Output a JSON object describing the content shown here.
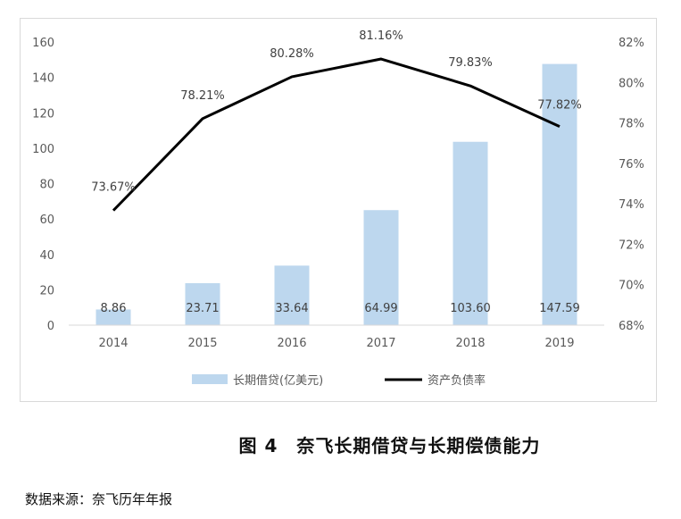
{
  "chart_data": {
    "type": "bar+line",
    "categories": [
      "2014",
      "2015",
      "2016",
      "2017",
      "2018",
      "2019"
    ],
    "series": [
      {
        "name": "长期借贷(亿美元)",
        "type": "bar",
        "axis": "left",
        "values": [
          8.86,
          23.71,
          33.64,
          64.99,
          103.6,
          147.59
        ],
        "labels": [
          "8.86",
          "23.71",
          "33.64",
          "64.99",
          "103.60",
          "147.59"
        ],
        "color": "#bdd7ee"
      },
      {
        "name": "资产负债率",
        "type": "line",
        "axis": "right",
        "values": [
          73.67,
          78.21,
          80.28,
          81.16,
          79.83,
          77.82
        ],
        "labels": [
          "73.67%",
          "78.21%",
          "80.28%",
          "81.16%",
          "79.83%",
          "77.82%"
        ],
        "color": "#000000"
      }
    ],
    "y_left": {
      "min": 0,
      "max": 160,
      "ticks": [
        "0",
        "20",
        "40",
        "60",
        "80",
        "100",
        "120",
        "140",
        "160"
      ]
    },
    "y_right": {
      "min": 68,
      "max": 82,
      "ticks": [
        "68%",
        "70%",
        "72%",
        "74%",
        "76%",
        "78%",
        "80%",
        "82%"
      ]
    },
    "legend_position": "bottom",
    "grid": false
  },
  "caption": "图 4　奈飞长期借贷与长期偿债能力",
  "source": "数据来源：奈飞历年年报"
}
